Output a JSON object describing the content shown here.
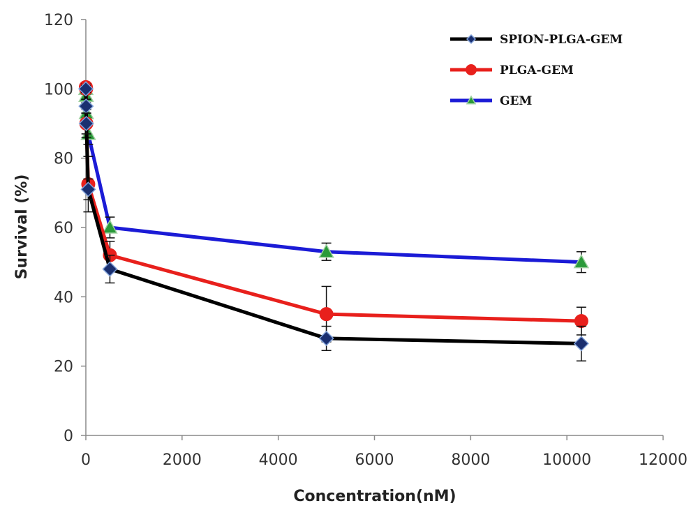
{
  "chart_data": {
    "type": "line",
    "xlabel": "Concentration(nM)",
    "ylabel": "Survival (%)",
    "xlim": [
      0,
      12000
    ],
    "ylim": [
      0,
      120
    ],
    "xticks": [
      "0",
      "2000",
      "4000",
      "6000",
      "8000",
      "10000",
      "12000"
    ],
    "yticks": [
      "0",
      "20",
      "40",
      "60",
      "80",
      "100",
      "120"
    ],
    "grid": false,
    "legend_position": "top-right",
    "series": [
      {
        "name": "SPION-PLGA-GEM",
        "color": "#000000",
        "marker_color": "#1a2f70",
        "marker": "diamond",
        "x": [
          0,
          5,
          10,
          50,
          500,
          5000,
          10300
        ],
        "y": [
          100,
          95,
          90,
          71,
          48,
          28,
          26.5
        ],
        "err": [
          1,
          2,
          3,
          3,
          4,
          3.5,
          5
        ]
      },
      {
        "name": "PLGA-GEM",
        "color": "#e8201c",
        "marker_color": "#e8201c",
        "marker": "circle",
        "x": [
          0,
          5,
          10,
          50,
          500,
          5000,
          10300
        ],
        "y": [
          100.5,
          100,
          90,
          72.5,
          52,
          35,
          33
        ],
        "err": [
          1,
          1.5,
          4,
          8,
          4,
          8,
          4
        ]
      },
      {
        "name": "GEM",
        "color": "#1b1bd6",
        "marker_color": "#2a9a3a",
        "marker": "triangle",
        "x": [
          0,
          5,
          10,
          50,
          500,
          5000,
          10300
        ],
        "y": [
          100,
          98,
          93,
          87,
          60,
          53,
          50
        ],
        "err": [
          1,
          2,
          2,
          3,
          3,
          2.5,
          3
        ]
      }
    ]
  }
}
